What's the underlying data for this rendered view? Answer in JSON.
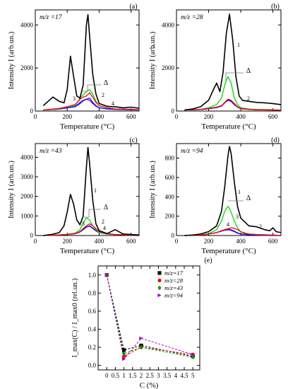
{
  "colors": {
    "curve1": "#000000",
    "curve2": "#ff0000",
    "curve3": "#00dd00",
    "curve4": "#0000ff",
    "curve5": "#9a00c8"
  },
  "chart_data": [
    {
      "type": "line",
      "panel_label": "(a)",
      "annotation": "m/z =17",
      "xlabel": "Temperature (°C)",
      "ylabel": "Intensity I (arb.un.)",
      "xlim": [
        0,
        650
      ],
      "ylim": [
        0,
        4700
      ],
      "xticks": [
        0,
        200,
        400,
        600
      ],
      "yticks": [
        0,
        2000,
        4000
      ],
      "curve_labels": [
        "1",
        "2",
        "3",
        "4",
        "Δ"
      ],
      "series": [
        {
          "label": "1",
          "color": "curve1",
          "x": [
            50,
            80,
            110,
            150,
            180,
            200,
            220,
            240,
            260,
            280,
            300,
            320,
            330,
            340,
            360,
            380,
            400,
            450,
            500,
            550,
            600,
            650
          ],
          "y": [
            250,
            450,
            650,
            450,
            380,
            1000,
            2550,
            1600,
            700,
            600,
            1200,
            4000,
            4480,
            3500,
            1700,
            800,
            350,
            220,
            200,
            150,
            180,
            130
          ]
        },
        {
          "label": "2",
          "color": "curve2",
          "x": [
            50,
            150,
            200,
            250,
            280,
            300,
            320,
            340,
            360,
            380,
            400,
            450,
            500,
            600,
            650
          ],
          "y": [
            50,
            120,
            200,
            300,
            550,
            650,
            700,
            850,
            650,
            400,
            250,
            150,
            100,
            80,
            60
          ]
        },
        {
          "label": "3",
          "color": "curve3",
          "x": [
            50,
            150,
            200,
            250,
            280,
            300,
            320,
            340,
            360,
            380,
            400,
            450,
            500,
            600,
            650
          ],
          "y": [
            50,
            100,
            200,
            250,
            600,
            750,
            900,
            1000,
            800,
            450,
            250,
            150,
            100,
            80,
            60
          ]
        },
        {
          "label": "4",
          "color": "curve4",
          "x": [
            50,
            150,
            200,
            250,
            280,
            300,
            320,
            340,
            360,
            380,
            400,
            450,
            500,
            600,
            650
          ],
          "y": [
            50,
            90,
            150,
            200,
            350,
            480,
            550,
            600,
            400,
            250,
            150,
            100,
            80,
            60,
            50
          ]
        },
        {
          "label": "",
          "color": "curve5",
          "x": [
            50,
            150,
            200,
            250,
            280,
            300,
            320,
            340,
            360,
            380,
            400,
            450,
            500,
            600,
            650
          ],
          "y": [
            50,
            90,
            150,
            200,
            400,
            500,
            550,
            500,
            350,
            220,
            150,
            100,
            80,
            60,
            50
          ]
        }
      ]
    },
    {
      "type": "line",
      "panel_label": "(b)",
      "annotation": "m/z =28",
      "xlabel": "Temperature (°C)",
      "ylabel": "Intensity I (arb.un.)",
      "xlim": [
        0,
        650
      ],
      "ylim": [
        0,
        4700
      ],
      "xticks": [
        0,
        200,
        400,
        600
      ],
      "yticks": [
        0,
        2000,
        4000
      ],
      "curve_labels": [
        "1",
        "2",
        "Δ"
      ],
      "series": [
        {
          "label": "1",
          "color": "curve1",
          "x": [
            50,
            100,
            150,
            200,
            230,
            250,
            270,
            290,
            310,
            330,
            350,
            370,
            390,
            410,
            450,
            500,
            550,
            600,
            650
          ],
          "y": [
            50,
            100,
            200,
            500,
            1000,
            1300,
            900,
            1800,
            3600,
            4500,
            3300,
            1600,
            700,
            500,
            450,
            400,
            380,
            350,
            300
          ]
        },
        {
          "label": "2",
          "color": "curve2",
          "x": [
            50,
            150,
            200,
            250,
            280,
            300,
            320,
            340,
            360,
            380,
            400,
            450,
            500,
            600,
            650
          ],
          "y": [
            50,
            80,
            120,
            180,
            250,
            400,
            550,
            500,
            350,
            200,
            120,
            80,
            60,
            50,
            40
          ]
        },
        {
          "label": "",
          "color": "curve3",
          "x": [
            50,
            150,
            200,
            250,
            280,
            300,
            320,
            340,
            360,
            380,
            400,
            450,
            500,
            600,
            650
          ],
          "y": [
            50,
            80,
            150,
            300,
            600,
            1200,
            1600,
            1300,
            600,
            300,
            150,
            100,
            80,
            60,
            50
          ]
        },
        {
          "label": "",
          "color": "curve4",
          "x": [
            50,
            150,
            200,
            250,
            280,
            300,
            320,
            340,
            360,
            380,
            400,
            450,
            500,
            600,
            650
          ],
          "y": [
            50,
            70,
            110,
            160,
            230,
            380,
            500,
            450,
            300,
            180,
            110,
            80,
            60,
            50,
            40
          ]
        },
        {
          "label": "",
          "color": "curve5",
          "x": [
            50,
            150,
            200,
            250,
            280,
            300,
            320,
            340,
            360,
            380,
            400,
            450,
            500,
            600,
            650
          ],
          "y": [
            50,
            70,
            110,
            170,
            240,
            390,
            520,
            460,
            310,
            190,
            110,
            80,
            60,
            50,
            40
          ]
        }
      ]
    },
    {
      "type": "line",
      "panel_label": "(c)",
      "annotation": "m/z =43",
      "xlabel": "Temperature (°C)",
      "ylabel": "Intensity I (arb.un.)",
      "xlim": [
        0,
        650
      ],
      "ylim": [
        0,
        4700
      ],
      "xticks": [
        0,
        200,
        400,
        600
      ],
      "yticks": [
        0,
        1000,
        2000,
        3000,
        4000
      ],
      "curve_labels": [
        "1",
        "2",
        "3",
        "4",
        "Δ"
      ],
      "series": [
        {
          "label": "1",
          "color": "curve1",
          "x": [
            50,
            100,
            150,
            180,
            200,
            220,
            240,
            260,
            280,
            300,
            320,
            330,
            340,
            360,
            380,
            400,
            450,
            500,
            550,
            600,
            650
          ],
          "y": [
            0,
            50,
            150,
            500,
            1200,
            2100,
            1600,
            800,
            550,
            1000,
            3500,
            4500,
            3700,
            1800,
            600,
            250,
            100,
            300,
            80,
            50,
            30
          ]
        },
        {
          "label": "2",
          "color": "curve2",
          "x": [
            50,
            150,
            200,
            250,
            280,
            300,
            320,
            340,
            360,
            380,
            400,
            450,
            500,
            600,
            650
          ],
          "y": [
            0,
            30,
            50,
            100,
            200,
            350,
            500,
            600,
            500,
            350,
            200,
            100,
            50,
            30,
            20
          ]
        },
        {
          "label": "3",
          "color": "curve3",
          "x": [
            50,
            150,
            200,
            250,
            280,
            300,
            320,
            340,
            360,
            380,
            400,
            450,
            500,
            600,
            650
          ],
          "y": [
            0,
            30,
            60,
            120,
            300,
            650,
            900,
            800,
            500,
            300,
            150,
            80,
            50,
            30,
            20
          ]
        },
        {
          "label": "4",
          "color": "curve4",
          "x": [
            50,
            150,
            200,
            250,
            280,
            300,
            320,
            340,
            360,
            380,
            400,
            450,
            500,
            600,
            650
          ],
          "y": [
            0,
            30,
            50,
            90,
            180,
            300,
            430,
            500,
            380,
            250,
            150,
            80,
            50,
            30,
            20
          ]
        },
        {
          "label": "",
          "color": "curve5",
          "x": [
            50,
            150,
            200,
            250,
            280,
            300,
            320,
            340,
            360,
            380,
            400,
            450,
            500,
            600,
            650
          ],
          "y": [
            0,
            30,
            50,
            100,
            200,
            320,
            440,
            480,
            360,
            240,
            140,
            80,
            50,
            30,
            20
          ]
        }
      ]
    },
    {
      "type": "line",
      "panel_label": "(d)",
      "annotation": "m/z =94",
      "xlabel": "Temperature (°C)",
      "ylabel": "Intensity I (arb.un.)",
      "xlim": [
        0,
        650
      ],
      "ylim": [
        0,
        950
      ],
      "xticks": [
        0,
        200,
        400,
        600
      ],
      "yticks": [
        0,
        200,
        400,
        600,
        800
      ],
      "curve_labels": [
        "1",
        "2",
        "3",
        "4",
        "Δ"
      ],
      "series": [
        {
          "label": "1",
          "color": "curve1",
          "x": [
            50,
            100,
            150,
            200,
            250,
            280,
            300,
            320,
            330,
            340,
            360,
            380,
            400,
            450,
            500,
            550,
            580,
            600,
            620,
            650
          ],
          "y": [
            0,
            5,
            15,
            40,
            100,
            250,
            500,
            820,
            920,
            850,
            550,
            300,
            180,
            100,
            90,
            60,
            50,
            80,
            40,
            30
          ]
        },
        {
          "label": "2",
          "color": "curve2",
          "x": [
            50,
            150,
            200,
            250,
            280,
            300,
            320,
            340,
            360,
            380,
            400,
            420,
            450,
            500,
            600,
            650
          ],
          "y": [
            0,
            5,
            15,
            30,
            50,
            60,
            70,
            80,
            75,
            60,
            40,
            25,
            15,
            10,
            5,
            0
          ]
        },
        {
          "label": "3",
          "color": "curve3",
          "x": [
            50,
            150,
            200,
            250,
            280,
            300,
            320,
            330,
            340,
            360,
            380,
            400,
            450,
            500,
            600,
            650
          ],
          "y": [
            0,
            5,
            20,
            60,
            150,
            250,
            300,
            280,
            240,
            150,
            80,
            40,
            15,
            10,
            5,
            0
          ]
        },
        {
          "label": "4",
          "color": "curve4",
          "x": [
            50,
            150,
            200,
            250,
            280,
            300,
            320,
            340,
            360,
            380,
            400,
            450,
            500,
            600,
            650
          ],
          "y": [
            0,
            5,
            15,
            30,
            45,
            55,
            60,
            55,
            40,
            25,
            15,
            8,
            5,
            0,
            0
          ]
        },
        {
          "label": "",
          "color": "curve5",
          "x": [
            50,
            150,
            200,
            250,
            280,
            300,
            320,
            340,
            360,
            380,
            400,
            450,
            500,
            600,
            650
          ],
          "y": [
            0,
            5,
            15,
            30,
            50,
            60,
            65,
            60,
            45,
            28,
            15,
            8,
            5,
            0,
            0
          ]
        }
      ]
    },
    {
      "type": "scatter",
      "panel_label": "(e)",
      "xlabel": "C (%)",
      "ylabel": "I_max(C) / I_max0 (rel.un.)",
      "xlim": [
        -0.5,
        5.4
      ],
      "ylim": [
        -0.05,
        1.1
      ],
      "xticks": [
        0,
        0.5,
        1,
        1.5,
        2,
        2.5,
        3,
        3.5,
        4,
        4.5,
        5
      ],
      "yticks": [
        0.0,
        0.2,
        0.4,
        0.6,
        0.8,
        1.0
      ],
      "legend_position": "top-right",
      "series": [
        {
          "name": "m/z=17",
          "color": "#000000",
          "marker": "square",
          "x": [
            0,
            1,
            2,
            5
          ],
          "y": [
            1.0,
            0.17,
            0.22,
            0.1
          ]
        },
        {
          "name": "m/z=28",
          "color": "#ff0000",
          "marker": "circle",
          "x": [
            0,
            1,
            2,
            5
          ],
          "y": [
            1.0,
            0.1,
            0.2,
            0.12
          ]
        },
        {
          "name": "m/z=43",
          "color": "#009900",
          "marker": "diamond",
          "x": [
            0,
            1,
            2,
            5
          ],
          "y": [
            1.0,
            0.13,
            0.2,
            0.09
          ]
        },
        {
          "name": "m/z=94",
          "color": "#9a00c8",
          "marker": "triangle",
          "x": [
            0,
            1,
            2,
            5
          ],
          "y": [
            1.0,
            0.07,
            0.3,
            0.12
          ]
        }
      ]
    }
  ]
}
